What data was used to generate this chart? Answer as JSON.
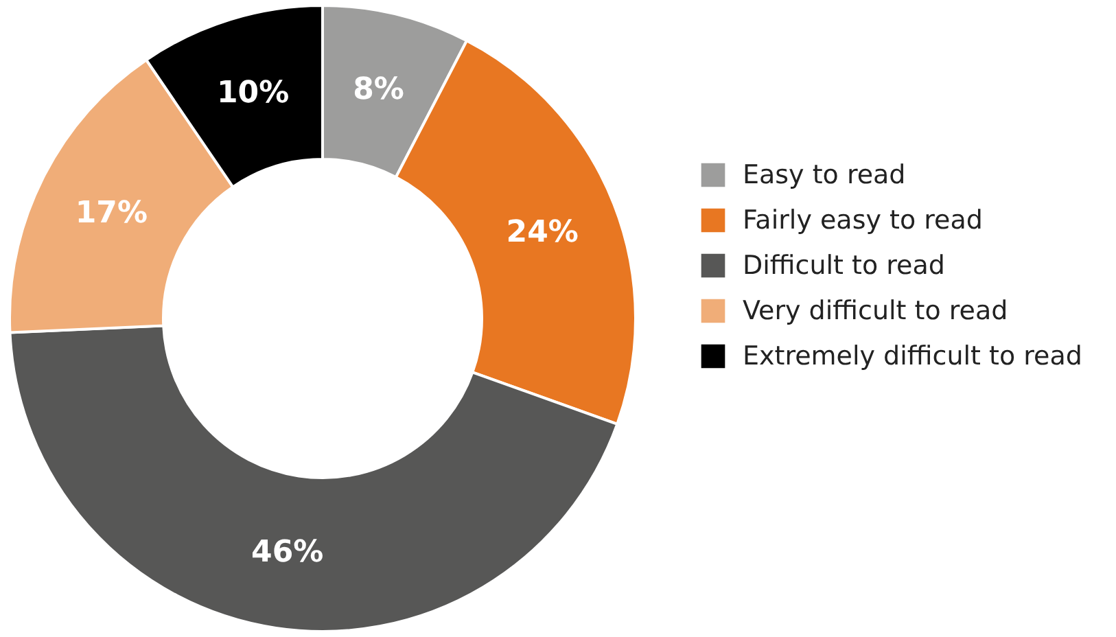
{
  "chart_data": {
    "type": "donut",
    "categories": [
      "Easy to read",
      "Fairly easy to read",
      "Difficult to read",
      "Very difficult to read",
      "Extremely difficult to read"
    ],
    "values": [
      8,
      24,
      46,
      17,
      10
    ],
    "value_labels": [
      "8%",
      "24%",
      "46%",
      "17%",
      "10%"
    ],
    "colors": [
      "#9d9d9c",
      "#e87722",
      "#575756",
      "#f0ad78",
      "#000000"
    ],
    "legend": "right"
  }
}
